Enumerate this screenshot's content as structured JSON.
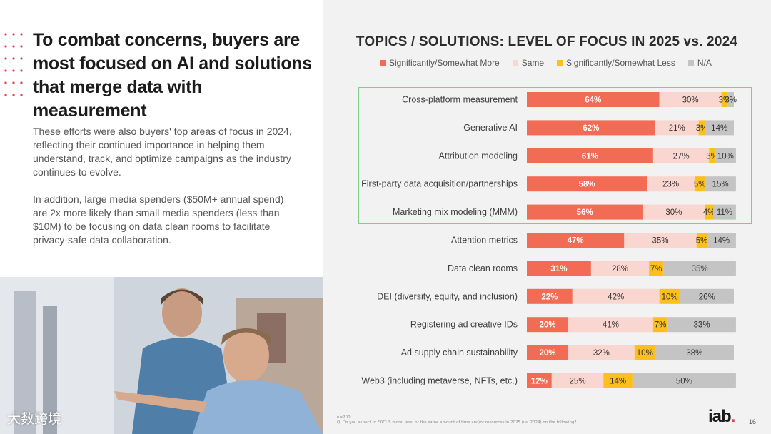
{
  "slide": {
    "headline": "To combat concerns, buyers are most focused on AI and solutions that merge data with measurement",
    "paragraph_1": "These efforts were also buyers' top areas of focus in 2024, reflecting their continued importance in helping them understand, track, and optimize campaigns as the industry continues to evolve.",
    "paragraph_2": "In addition, large media spenders ($50M+ annual spend) are 2x more likely than small media spenders (less than $10M) to be focusing on data clean rooms to facilitate privacy-safe data collaboration.",
    "watermark": "大数跨境",
    "footnote_n": "n=200",
    "footnote_q": "Q: Do you expect to FOCUS more, less, or the same amount of time and/or resources in 2025 (vs. 2024) on the following?",
    "logo_text": "iab",
    "logo_dot": ".",
    "page_number": "16"
  },
  "colors": {
    "more": "#f26b55",
    "same": "#fad6d0",
    "less": "#fcc01c",
    "na": "#c4c4c4",
    "highlight_border": "#7ccf8b",
    "accent_dots": "#e2424b"
  },
  "chart_data": {
    "type": "bar",
    "orientation": "horizontal",
    "stacked": true,
    "title": "TOPICS / SOLUTIONS: LEVEL OF FOCUS IN 2025 vs. 2024",
    "legend_position": "top",
    "highlighted_rows": 5,
    "categories": [
      "Cross-platform measurement",
      "Generative AI",
      "Attribution modeling",
      "First-party data acquisition/partnerships",
      "Marketing mix modeling (MMM)",
      "Attention metrics",
      "Data clean rooms",
      "DEI (diversity, equity, and inclusion)",
      "Registering ad creative IDs",
      "Ad supply chain sustainability",
      "Web3 (including metaverse, NFTs, etc.)"
    ],
    "series": [
      {
        "name": "Significantly/Somewhat More",
        "values": [
          64,
          62,
          61,
          58,
          56,
          47,
          31,
          22,
          20,
          20,
          12
        ]
      },
      {
        "name": "Same",
        "values": [
          30,
          21,
          27,
          23,
          30,
          35,
          28,
          42,
          41,
          32,
          25
        ]
      },
      {
        "name": "Significantly/Somewhat Less",
        "values": [
          3,
          3,
          3,
          5,
          4,
          5,
          7,
          10,
          7,
          10,
          14
        ]
      },
      {
        "name": "N/A",
        "values": [
          3,
          14,
          10,
          15,
          11,
          14,
          35,
          26,
          33,
          38,
          50
        ]
      }
    ],
    "unit": "%"
  }
}
